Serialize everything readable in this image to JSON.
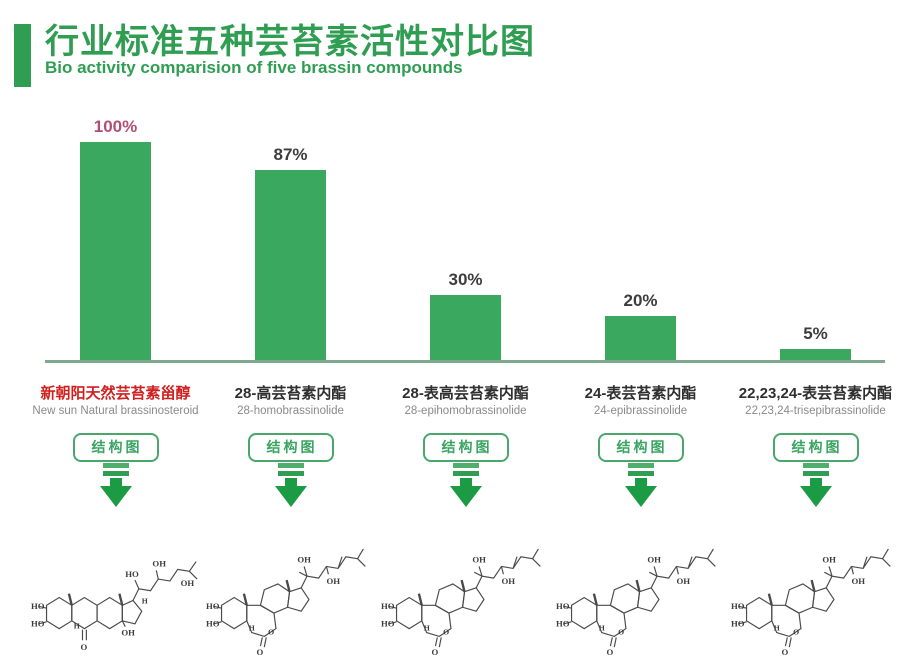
{
  "header": {
    "title": "行业标准五种芸苔素活性对比图",
    "subtitle": "Bio activity comparision of five brassin compounds"
  },
  "chart_data": {
    "type": "bar",
    "categories": [
      "新朝阳天然芸苔素甾醇",
      "28-高芸苔素内酯",
      "28-表高芸苔素内酯",
      "24-表芸苔素内酯",
      "22,23,24-表芸苔素内酯"
    ],
    "categories_en": [
      "New sun Natural brassinosteroid",
      "28-homobrassinolide",
      "28-epihomobrassinolide",
      "24-epibrassinolide",
      "22,23,24-trisepibrassinolide"
    ],
    "values": [
      100,
      87,
      30,
      20,
      5
    ],
    "value_labels": [
      "100%",
      "87%",
      "30%",
      "20%",
      "5%"
    ],
    "title": "行业标准五种芸苔素活性对比图",
    "subtitle": "Bio activity comparision of five brassin compounds",
    "xlabel": "",
    "ylabel": "",
    "ylim": [
      0,
      100
    ],
    "grid": false,
    "legend": false,
    "bar_color": "#3aa85e"
  },
  "columns": [
    {
      "percent": "100%",
      "name_cn": "新朝阳天然芸苔素甾醇",
      "name_en": "New sun Natural brassinosteroid"
    },
    {
      "percent": "87%",
      "name_cn": "28-高芸苔素内酯",
      "name_en": "28-homobrassinolide"
    },
    {
      "percent": "30%",
      "name_cn": "28-表高芸苔素内酯",
      "name_en": "28-epihomobrassinolide"
    },
    {
      "percent": "20%",
      "name_cn": "24-表芸苔素内酯",
      "name_en": "24-epibrassinolide"
    },
    {
      "percent": "5%",
      "name_cn": "22,23,24-表芸苔素内酯",
      "name_en": "22,23,24-trisepibrassinolide"
    }
  ],
  "ui": {
    "structure_button_label": "结构图"
  },
  "structure_labels": {
    "ho": "HO",
    "oh": "OH",
    "h": "H",
    "o": "O"
  },
  "colors": {
    "brand_green": "#2f9e52",
    "bar_green": "#3aa85e",
    "arrow_green": "#1b9c44",
    "baseline_green_gray": "#7fa98c",
    "highlight_percent_pink": "#b04f74",
    "highlight_name_red": "#d01f1f",
    "label_dark": "#3d3d3d",
    "label_gray": "#8a8a8a",
    "button_green": "#3aa463"
  }
}
